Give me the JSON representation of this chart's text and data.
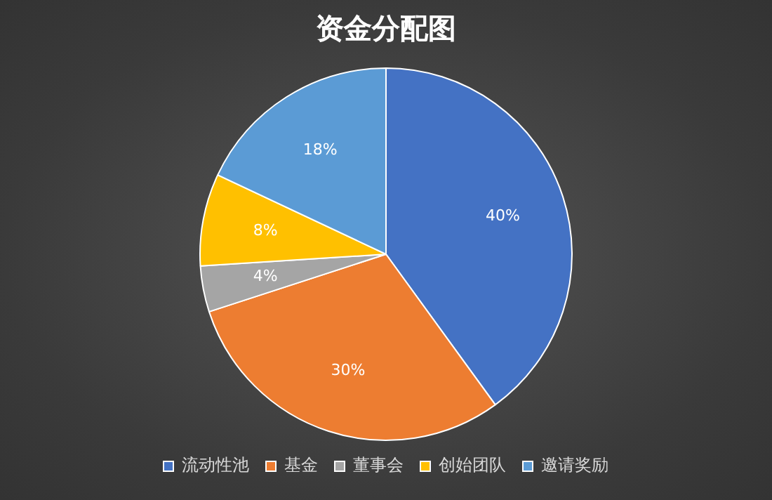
{
  "chart_data": {
    "type": "pie",
    "title": "资金分配图",
    "categories": [
      "流动性池",
      "基金",
      "董事会",
      "创始团队",
      "邀请奖励"
    ],
    "values": [
      40,
      30,
      4,
      8,
      18
    ],
    "value_labels": [
      "40%",
      "30%",
      "4%",
      "8%",
      "18%"
    ],
    "colors": [
      "#4472c4",
      "#ed7d31",
      "#a5a5a5",
      "#ffc000",
      "#5b9bd5"
    ],
    "legend": "bottom"
  }
}
